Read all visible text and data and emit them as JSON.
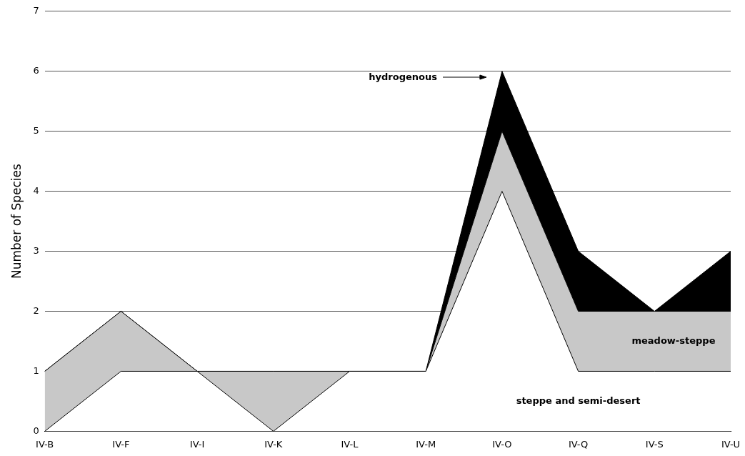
{
  "chart_data": {
    "type": "area",
    "stacked": true,
    "ylabel": "Number of Species",
    "categories": [
      "IV-B",
      "IV-F",
      "IV-I",
      "IV-K",
      "IV-L",
      "IV-M",
      "IV-O",
      "IV-Q",
      "IV-S",
      "IV-U"
    ],
    "series": [
      {
        "name": "steppe and semi-desert",
        "color": "#ffffff",
        "values": [
          0,
          1,
          1,
          0,
          1,
          1,
          4,
          1,
          1,
          1
        ]
      },
      {
        "name": "meadow-steppe",
        "color": "#c8c8c8",
        "values": [
          1,
          1,
          0,
          1,
          0,
          0,
          1,
          1,
          1,
          1
        ]
      },
      {
        "name": "hydrogenous",
        "color": "#000000",
        "values": [
          0,
          0,
          0,
          0,
          0,
          0,
          1,
          1,
          0,
          1
        ]
      }
    ],
    "ylim": [
      0,
      7
    ],
    "yticks": [
      0,
      1,
      2,
      3,
      4,
      5,
      6,
      7
    ],
    "grid": "y"
  }
}
